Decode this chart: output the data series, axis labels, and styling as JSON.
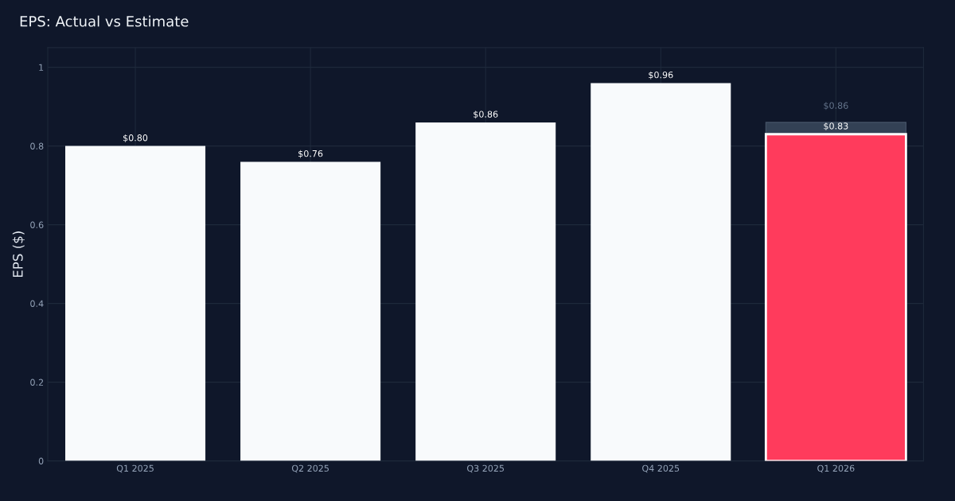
{
  "chart_data": {
    "type": "bar",
    "title": "EPS: Actual vs Estimate",
    "ylabel": "EPS ($)",
    "categories": [
      "Q1 2025",
      "Q2 2025",
      "Q3 2025",
      "Q4 2025",
      "Q1 2026"
    ],
    "series": [
      {
        "color": "#334155",
        "values": [
          null,
          null,
          null,
          null,
          0.86
        ],
        "value_labels": [
          null,
          null,
          null,
          null,
          "$0.86"
        ]
      },
      {
        "colors": [
          "#f8fafc",
          "#f8fafc",
          "#f8fafc",
          "#f8fafc",
          "#ff3b5c"
        ],
        "values": [
          0.8,
          0.76,
          0.86,
          0.96,
          0.83
        ],
        "value_labels": [
          "$0.80",
          "$0.76",
          "$0.86",
          "$0.96",
          "$0.83"
        ]
      }
    ],
    "ylim": [
      0,
      1.05
    ],
    "yticks": [
      0,
      0.2,
      0.4,
      0.6,
      0.8,
      1
    ],
    "grid": true,
    "legend": false
  }
}
